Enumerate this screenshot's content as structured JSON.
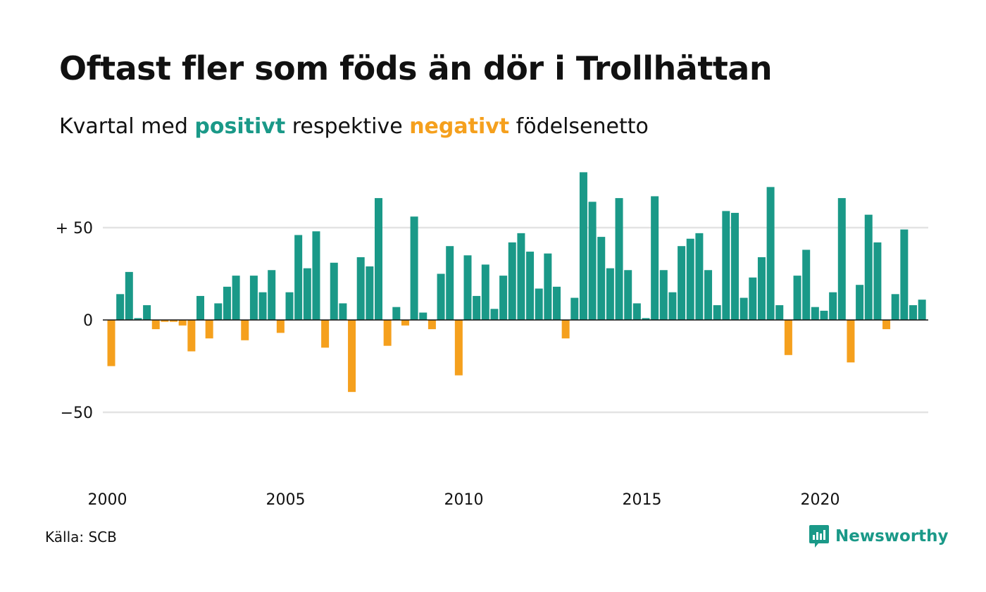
{
  "title": "Oftast fler som föds än dör i Trollhättan",
  "subtitle": {
    "prefix": "Kvartal med ",
    "positive": "positivt",
    "middle": " respektive ",
    "negative": "negativt",
    "suffix": " födelsenetto"
  },
  "source": "Källa: SCB",
  "brand": "Newsworthy",
  "colors": {
    "positive": "#1a9988",
    "negative": "#f5a01d",
    "grid": "#e3e3e3",
    "zero_line": "#111111"
  },
  "chart_data": {
    "type": "bar",
    "title": "Oftast fler som föds än dör i Trollhättan",
    "subtitle": "Kvartal med positivt respektive negativt födelsenetto",
    "x_start": 2000,
    "interval": "quarter",
    "x_ticks": [
      "2000",
      "2005",
      "2010",
      "2015",
      "2020"
    ],
    "y_ticks": [
      {
        "value": 50,
        "label": "+ 50"
      },
      {
        "value": 0,
        "label": "0"
      },
      {
        "value": -50,
        "label": "−50"
      }
    ],
    "ylim": [
      -70,
      80
    ],
    "grid": true,
    "values": [
      -25,
      14,
      26,
      1,
      8,
      -5,
      -1,
      -1,
      -3,
      -17,
      13,
      -10,
      9,
      18,
      24,
      -11,
      24,
      15,
      27,
      -7,
      15,
      46,
      28,
      48,
      -15,
      31,
      9,
      -39,
      34,
      29,
      66,
      -14,
      7,
      -3,
      56,
      4,
      -5,
      25,
      40,
      -30,
      35,
      13,
      30,
      6,
      24,
      42,
      47,
      37,
      17,
      36,
      18,
      -10,
      12,
      80,
      64,
      45,
      28,
      66,
      27,
      9,
      1,
      67,
      27,
      15,
      40,
      44,
      47,
      27,
      8,
      59,
      58,
      12,
      23,
      34,
      72,
      8,
      -19,
      24,
      38,
      7,
      5,
      15,
      66,
      -23,
      19,
      57,
      42,
      -5,
      14,
      49,
      8,
      11
    ]
  }
}
